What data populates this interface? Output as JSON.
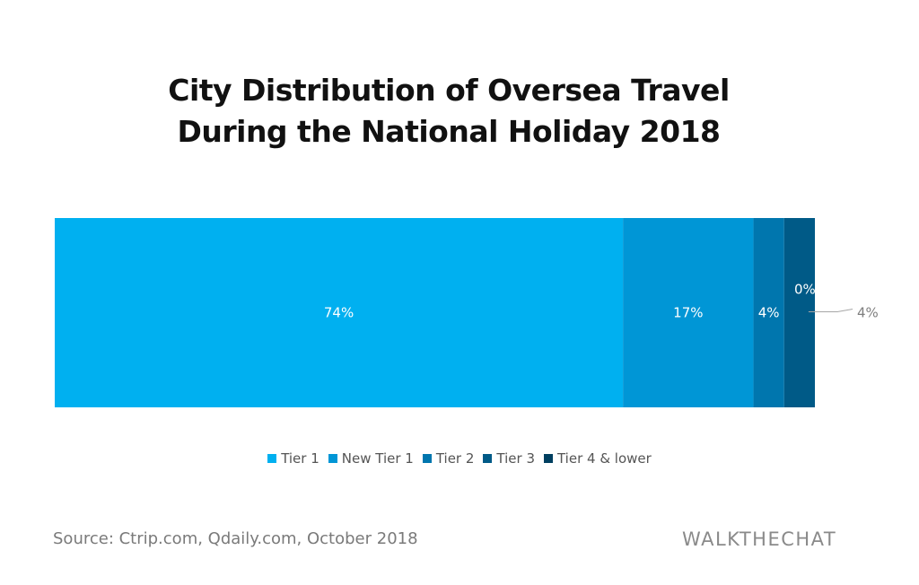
{
  "chart_data": {
    "type": "bar",
    "orientation": "horizontal-stacked-100",
    "title_lines": [
      "City Distribution of Oversea Travel",
      "During the National Holiday 2018"
    ],
    "categories": [
      ""
    ],
    "series": [
      {
        "name": "Tier 1",
        "values": [
          74
        ],
        "label": "74%",
        "color": "#00B0F0"
      },
      {
        "name": "New Tier 1",
        "values": [
          17
        ],
        "label": "17%",
        "color": "#0096D6"
      },
      {
        "name": "Tier 2",
        "values": [
          4
        ],
        "label": "4%",
        "color": "#0076AE"
      },
      {
        "name": "Tier 3",
        "values": [
          4
        ],
        "label": "4%",
        "color": "#005A87"
      },
      {
        "name": "Tier 4 & lower",
        "values": [
          0
        ],
        "label": "0%",
        "color": "#003F60"
      }
    ],
    "xlim": [
      0,
      100
    ],
    "grid": false,
    "legend_position": "bottom"
  },
  "footer": {
    "source": "Source: Ctrip.com, Qdaily.com, October 2018",
    "brand": "WALKTHECHAT"
  }
}
